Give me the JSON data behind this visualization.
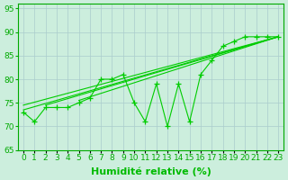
{
  "x": [
    0,
    1,
    2,
    3,
    4,
    5,
    6,
    7,
    8,
    9,
    10,
    11,
    12,
    13,
    14,
    15,
    16,
    17,
    18,
    19,
    20,
    21,
    22,
    23
  ],
  "y_data": [
    73,
    71,
    74,
    74,
    74,
    75,
    76,
    80,
    80,
    81,
    75,
    71,
    79,
    70,
    79,
    71,
    81,
    84,
    87,
    88,
    89,
    89,
    89,
    89
  ],
  "straight_lines": [
    {
      "x0": 0,
      "y0": 73.5,
      "x1": 23,
      "y1": 89
    },
    {
      "x0": 0,
      "y0": 74.5,
      "x1": 23,
      "y1": 89
    },
    {
      "x0": 2,
      "y0": 74.5,
      "x1": 23,
      "y1": 89
    },
    {
      "x0": 5,
      "y0": 75.5,
      "x1": 23,
      "y1": 89
    }
  ],
  "line_color": "#00cc00",
  "marker": "+",
  "marker_size": 4,
  "ylim": [
    65,
    96
  ],
  "yticks": [
    65,
    70,
    75,
    80,
    85,
    90,
    95
  ],
  "xlim": [
    -0.5,
    23.5
  ],
  "xlabel": "Humidité relative (%)",
  "xlabel_fontsize": 8,
  "xlabel_color": "#00bb00",
  "tick_color": "#00aa00",
  "tick_fontsize": 6.5,
  "bg_color": "#cceedd",
  "grid_color": "#aacccc",
  "spine_color": "#00aa00"
}
